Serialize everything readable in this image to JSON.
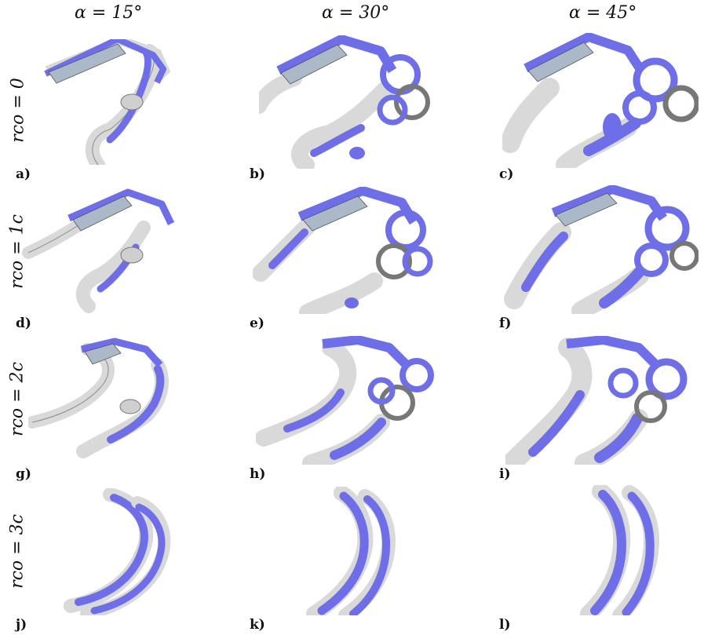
{
  "figure": {
    "column_headers": [
      "α = 15°",
      "α = 30°",
      "α = 45°"
    ],
    "row_labels": [
      "rco = 0",
      "rco = 1c",
      "rco = 2c",
      "rco = 3c"
    ],
    "panel_labels": [
      "a)",
      "b)",
      "c)",
      "d)",
      "e)",
      "f)",
      "g)",
      "h)",
      "i)",
      "j)",
      "k)",
      "l)"
    ]
  },
  "colors": {
    "vortex_blue": "#6e6ee8",
    "vortex_blue_dark": "#4a4ad0",
    "iso_grey": "#d9d9d9",
    "iso_grey_edge": "#8a8a8a",
    "wing_surface": "#aab8c8"
  }
}
